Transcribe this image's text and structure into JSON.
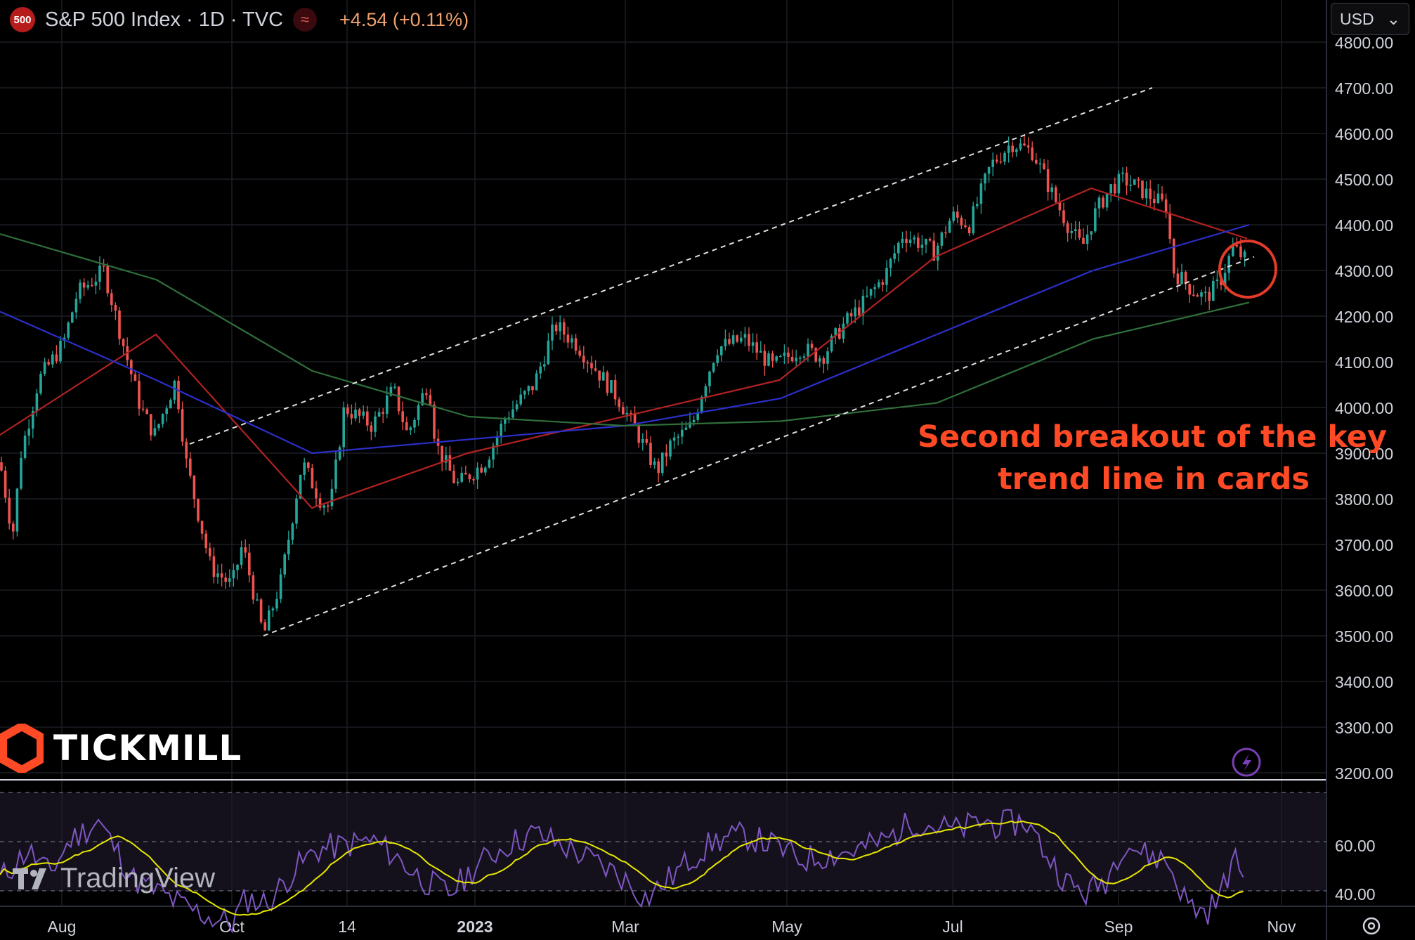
{
  "header": {
    "symbol_badge": "500",
    "title": "S&P 500 Index · 1D · TVC",
    "change": "+4.54 (+0.11%)"
  },
  "currency": "USD",
  "annotation": {
    "line1": "Second breakout of the key",
    "line2": "trend line in cards"
  },
  "brand_logo": "TICKMILL",
  "watermark": "TradingView",
  "colors": {
    "up": "#26a69a",
    "down": "#ef5350",
    "ma_red": "#b22222",
    "ma_blue": "#2b2fc8",
    "ma_green": "#2f6f3a",
    "rsi": "#7e57c2",
    "rsi_ma": "#e6e600",
    "annotation": "#ff4a25"
  },
  "chart_data": [
    {
      "type": "candlestick",
      "y_ticks": [
        "4800.00",
        "4700.00",
        "4600.00",
        "4500.00",
        "4400.00",
        "4300.00",
        "4200.00",
        "4100.00",
        "4000.00",
        "3900.00",
        "3800.00",
        "3700.00",
        "3600.00",
        "3500.00",
        "3400.00",
        "3300.00",
        "3200.00"
      ],
      "ylim": [
        3200,
        4800
      ],
      "x_ticks": [
        "Aug",
        "Oct",
        "14",
        "2023",
        "Mar",
        "May",
        "Jul",
        "Sep",
        "Nov"
      ],
      "key_points": {
        "high_aug": 4320,
        "low_oct": 3500,
        "high_feb": 4190,
        "low_mar": 3810,
        "high_jul": 4600,
        "low_sep": 4220,
        "last": 4330
      },
      "moving_averages": [
        {
          "color": "#b22222",
          "values": [
            3940,
            4160,
            3780,
            3900,
            3980,
            4060,
            4330,
            4480,
            4370
          ]
        },
        {
          "color": "#2b2fc8",
          "values": [
            4210,
            4060,
            3900,
            3930,
            3960,
            4020,
            4160,
            4300,
            4400
          ]
        },
        {
          "color": "#2f6f3a",
          "values": [
            4380,
            4280,
            4080,
            3980,
            3960,
            3970,
            4010,
            4150,
            4230
          ]
        }
      ],
      "channel": {
        "upper": [
          [
            3920,
            4700
          ]
        ],
        "lower": [
          [
            3500,
            4330
          ]
        ]
      }
    },
    {
      "type": "line",
      "name": "RSI",
      "y_ticks": [
        "60.00",
        "40.00"
      ],
      "ylim": [
        30,
        70
      ]
    }
  ]
}
